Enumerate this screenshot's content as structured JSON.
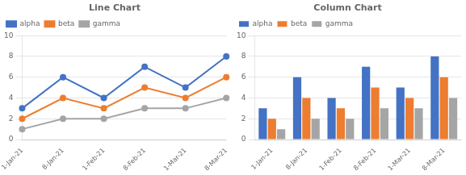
{
  "chart_data": [
    {
      "type": "line",
      "title": "Line Chart",
      "categories": [
        "1-Jan-21",
        "8-Jan-21",
        "1-Feb-21",
        "8-Feb-21",
        "1-Mar-21",
        "8-Mar-21"
      ],
      "series": [
        {
          "name": "alpha",
          "color": "#4472C4",
          "values": [
            3,
            6,
            4,
            7,
            5,
            8
          ]
        },
        {
          "name": "beta",
          "color": "#ED7D31",
          "values": [
            2,
            4,
            3,
            5,
            4,
            6
          ]
        },
        {
          "name": "gamma",
          "color": "#A5A5A5",
          "values": [
            1,
            2,
            2,
            3,
            3,
            4
          ]
        }
      ],
      "ylim": [
        0,
        10
      ],
      "yticks": [
        0,
        2,
        4,
        6,
        8,
        10
      ],
      "grid": true,
      "legend": "upper left",
      "marker": "circle"
    },
    {
      "type": "bar",
      "title": "Column Chart",
      "categories": [
        "1-Jan-21",
        "8-Jan-21",
        "1-Feb-21",
        "8-Feb-21",
        "1-Mar-21",
        "8-Mar-21"
      ],
      "series": [
        {
          "name": "alpha",
          "color": "#4472C4",
          "values": [
            3,
            6,
            4,
            7,
            5,
            8
          ]
        },
        {
          "name": "beta",
          "color": "#ED7D31",
          "values": [
            2,
            4,
            3,
            5,
            4,
            6
          ]
        },
        {
          "name": "gamma",
          "color": "#A5A5A5",
          "values": [
            1,
            2,
            2,
            3,
            3,
            4
          ]
        }
      ],
      "ylim": [
        0,
        10
      ],
      "yticks": [
        0,
        2,
        4,
        6,
        8,
        10
      ],
      "grid": true,
      "legend": "upper left"
    }
  ]
}
